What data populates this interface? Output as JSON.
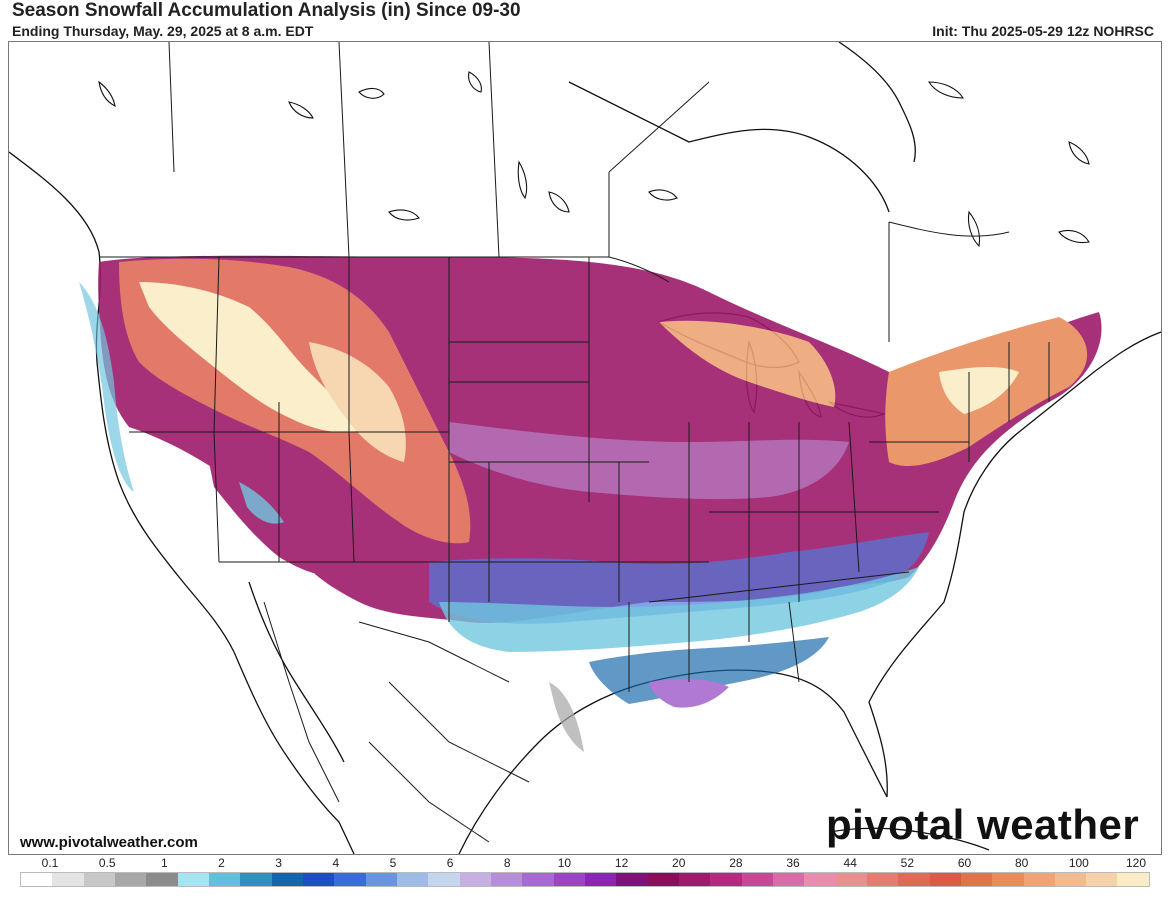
{
  "header": {
    "title": "Season Snowfall Accumulation Analysis (in) Since 09-30",
    "subtitle": "Ending Thursday, May. 29, 2025 at 8 a.m. EDT",
    "init": "Init: Thu 2025-05-29 12z NOHRSC"
  },
  "footer": {
    "site_url": "www.pivotalweather.com",
    "logo_text": "pivotal weather"
  },
  "legend": {
    "labels": [
      "0.1",
      "0.5",
      "1",
      "2",
      "3",
      "4",
      "5",
      "6",
      "8",
      "10",
      "12",
      "20",
      "28",
      "36",
      "44",
      "52",
      "60",
      "80",
      "100",
      "120"
    ],
    "colors": [
      "#ffffff",
      "#e4e4e4",
      "#c8c8c8",
      "#a8a8a8",
      "#8c8c8c",
      "#a6e4f2",
      "#62c0dc",
      "#2e92bc",
      "#1466aa",
      "#1e4ec4",
      "#3a6cd8",
      "#6a94e0",
      "#9ebce6",
      "#c4d6ee",
      "#c6b0e2",
      "#b68ed8",
      "#a66ad0",
      "#9a46c4",
      "#8a26b4",
      "#7e1278",
      "#8a0e5a",
      "#9e1a6a",
      "#b42a80",
      "#c84896",
      "#d86ca8",
      "#e68eae",
      "#e89090",
      "#e47c74",
      "#e06a58",
      "#dc5a48",
      "#e0744a",
      "#e88c5c",
      "#eea476",
      "#f2bc90",
      "#f6d2aa",
      "#faecc6"
    ]
  }
}
